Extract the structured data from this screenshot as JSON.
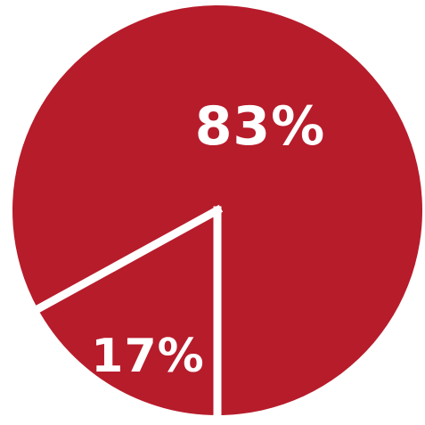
{
  "chart_data": {
    "type": "pie",
    "slices": [
      {
        "label": "83%",
        "value": 83,
        "color": "#b71c2b"
      },
      {
        "label": "17%",
        "value": 17,
        "color": "#b71c2b"
      }
    ],
    "separator_color": "#ffffff"
  }
}
